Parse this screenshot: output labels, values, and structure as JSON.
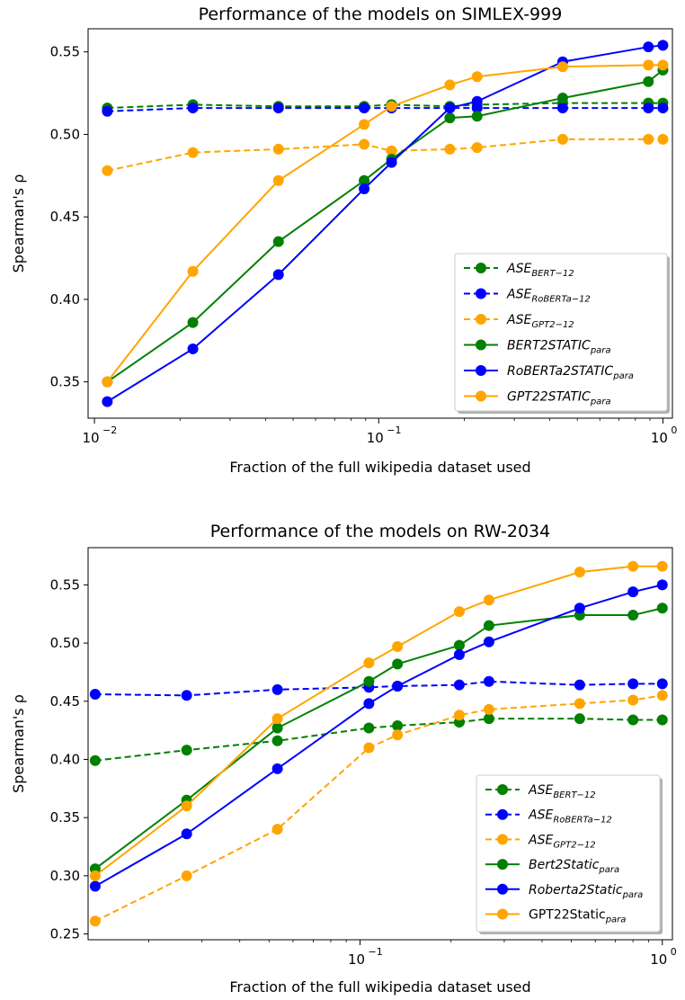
{
  "chart_data": [
    {
      "type": "line",
      "title": "Performance of the models on SIMLEX-999",
      "xlabel": "Fraction of the full wikipedia dataset used",
      "ylabel": "Spearman's ρ",
      "xscale": "log",
      "xlim": [
        0.0095,
        1.08
      ],
      "ylim": [
        0.328,
        0.564
      ],
      "yticks": [
        "0.35",
        "0.40",
        "0.45",
        "0.50",
        "0.55"
      ],
      "xticks": [
        {
          "value": 0.01,
          "base": "10",
          "exp": "−2"
        },
        {
          "value": 0.1,
          "base": "10",
          "exp": "−1"
        },
        {
          "value": 1,
          "base": "10",
          "exp": "0"
        }
      ],
      "grid": false,
      "legend_position": "lower-right",
      "series": [
        {
          "name": "ASE",
          "sub": "BERT−12",
          "style": "dashed",
          "color": "#008000",
          "x": [
            0.0111,
            0.0222,
            0.0444,
            0.0889,
            0.111,
            0.178,
            0.222,
            0.444,
            0.889,
            1.0
          ],
          "y": [
            0.516,
            0.518,
            0.517,
            0.517,
            0.518,
            0.517,
            0.518,
            0.519,
            0.519,
            0.519
          ]
        },
        {
          "name": "ASE",
          "sub": "RoBERTa−12",
          "style": "dashed",
          "color": "#0000ff",
          "x": [
            0.0111,
            0.0222,
            0.0444,
            0.0889,
            0.111,
            0.178,
            0.222,
            0.444,
            0.889,
            1.0
          ],
          "y": [
            0.514,
            0.516,
            0.516,
            0.516,
            0.516,
            0.516,
            0.516,
            0.516,
            0.516,
            0.516
          ]
        },
        {
          "name": "ASE",
          "sub": "GPT2−12",
          "style": "dashed",
          "color": "#ffa500",
          "x": [
            0.0111,
            0.0222,
            0.0444,
            0.0889,
            0.111,
            0.178,
            0.222,
            0.444,
            0.889,
            1.0
          ],
          "y": [
            0.478,
            0.489,
            0.491,
            0.494,
            0.49,
            0.491,
            0.492,
            0.497,
            0.497,
            0.497
          ]
        },
        {
          "name": "BERT2STATIC",
          "sub": "para",
          "style": "solid",
          "color": "#008000",
          "x": [
            0.0111,
            0.0222,
            0.0444,
            0.0889,
            0.111,
            0.178,
            0.222,
            0.444,
            0.889,
            1.0
          ],
          "y": [
            0.35,
            0.386,
            0.435,
            0.472,
            0.485,
            0.51,
            0.511,
            0.522,
            0.532,
            0.539
          ]
        },
        {
          "name": "RoBERTa2STATIC",
          "sub": "para",
          "style": "solid",
          "color": "#0000ff",
          "x": [
            0.0111,
            0.0222,
            0.0444,
            0.0889,
            0.111,
            0.178,
            0.222,
            0.444,
            0.889,
            1.0
          ],
          "y": [
            0.338,
            0.37,
            0.415,
            0.467,
            0.483,
            0.516,
            0.52,
            0.544,
            0.553,
            0.554
          ]
        },
        {
          "name": "GPT22STATIC",
          "sub": "para",
          "style": "solid",
          "color": "#ffa500",
          "x": [
            0.0111,
            0.0222,
            0.0444,
            0.0889,
            0.111,
            0.178,
            0.222,
            0.444,
            0.889,
            1.0
          ],
          "y": [
            0.35,
            0.417,
            0.472,
            0.506,
            0.517,
            0.53,
            0.535,
            0.541,
            0.542,
            0.542
          ]
        }
      ]
    },
    {
      "type": "line",
      "title": "Performance of the models on RW-2034",
      "xlabel": "Fraction of the full wikipedia dataset used",
      "ylabel": "Spearman's ρ",
      "xscale": "log",
      "xlim": [
        0.0126,
        1.08
      ],
      "ylim": [
        0.245,
        0.582
      ],
      "yticks": [
        "0.25",
        "0.30",
        "0.35",
        "0.40",
        "0.45",
        "0.50",
        "0.55"
      ],
      "xticks": [
        {
          "value": 0.1,
          "base": "10",
          "exp": "−1"
        },
        {
          "value": 1,
          "base": "10",
          "exp": "0"
        }
      ],
      "grid": false,
      "legend_position": "lower-right",
      "series": [
        {
          "name": "ASE",
          "sub": "BERT−12",
          "style": "dashed",
          "color": "#008000",
          "x": [
            0.0133,
            0.0267,
            0.0533,
            0.107,
            0.133,
            0.213,
            0.267,
            0.533,
            0.8,
            1.0
          ],
          "y": [
            0.399,
            0.408,
            0.416,
            0.427,
            0.429,
            0.432,
            0.435,
            0.435,
            0.434,
            0.434
          ]
        },
        {
          "name": "ASE",
          "sub": "RoBERTa−12",
          "style": "dashed",
          "color": "#0000ff",
          "x": [
            0.0133,
            0.0267,
            0.0533,
            0.107,
            0.133,
            0.213,
            0.267,
            0.533,
            0.8,
            1.0
          ],
          "y": [
            0.456,
            0.455,
            0.46,
            0.462,
            0.463,
            0.464,
            0.467,
            0.464,
            0.465,
            0.465
          ]
        },
        {
          "name": "ASE",
          "sub": "GPT2−12",
          "style": "dashed",
          "color": "#ffa500",
          "x": [
            0.0133,
            0.0267,
            0.0533,
            0.107,
            0.133,
            0.213,
            0.267,
            0.533,
            0.8,
            1.0
          ],
          "y": [
            0.261,
            0.3,
            0.34,
            0.41,
            0.421,
            0.438,
            0.443,
            0.448,
            0.451,
            0.455
          ]
        },
        {
          "name": "Bert2Static",
          "sub": "para",
          "style": "solid",
          "color": "#008000",
          "x": [
            0.0133,
            0.0267,
            0.0533,
            0.107,
            0.133,
            0.213,
            0.267,
            0.533,
            0.8,
            1.0
          ],
          "y": [
            0.306,
            0.365,
            0.427,
            0.467,
            0.482,
            0.498,
            0.515,
            0.524,
            0.524,
            0.53
          ]
        },
        {
          "name": "Roberta2Static",
          "sub": "para",
          "style": "solid",
          "color": "#0000ff",
          "x": [
            0.0133,
            0.0267,
            0.0533,
            0.107,
            0.133,
            0.213,
            0.267,
            0.533,
            0.8,
            1.0
          ],
          "y": [
            0.291,
            0.336,
            0.392,
            0.448,
            0.463,
            0.49,
            0.501,
            0.53,
            0.544,
            0.55
          ]
        },
        {
          "name": "GPT22Static",
          "sub": "para",
          "style": "solid",
          "color": "#ffa500",
          "upright": true,
          "x": [
            0.0133,
            0.0267,
            0.0533,
            0.107,
            0.133,
            0.213,
            0.267,
            0.533,
            0.8,
            1.0
          ],
          "y": [
            0.3,
            0.36,
            0.435,
            0.483,
            0.497,
            0.527,
            0.537,
            0.561,
            0.566,
            0.566
          ]
        }
      ]
    }
  ]
}
